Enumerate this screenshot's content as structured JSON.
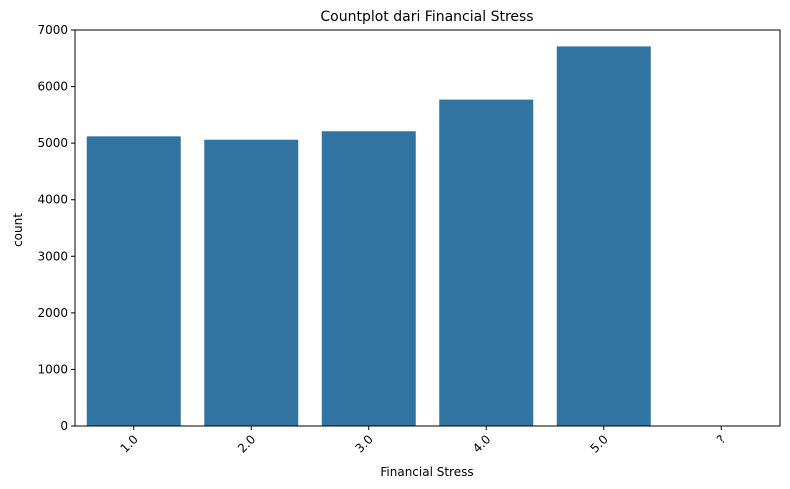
{
  "chart_data": {
    "type": "bar",
    "title": "Countplot dari Financial Stress",
    "xlabel": "Financial Stress",
    "ylabel": "count",
    "categories": [
      "1.0",
      "2.0",
      "3.0",
      "4.0",
      "5.0",
      "?"
    ],
    "values": [
      5120,
      5060,
      5210,
      5770,
      6710,
      3
    ],
    "ylim": [
      0,
      7000
    ],
    "yticks": [
      0,
      1000,
      2000,
      3000,
      4000,
      5000,
      6000,
      7000
    ],
    "x_tick_rotation_deg": 45,
    "grid": false,
    "legend": "none",
    "bar_color": "#3274a1"
  }
}
